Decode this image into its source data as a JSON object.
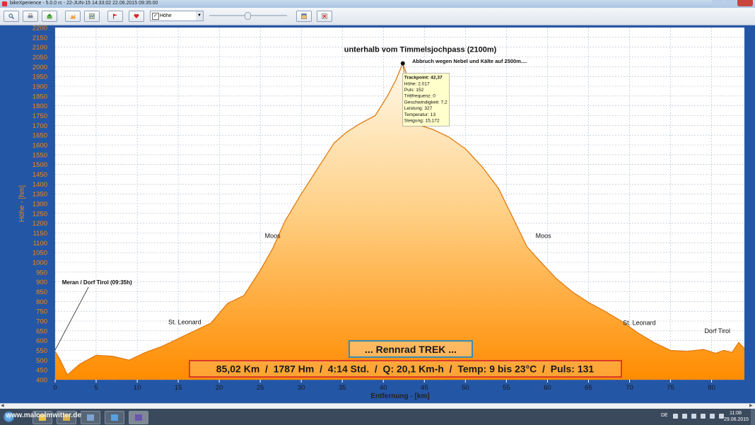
{
  "window": {
    "title": "bikeXperience - 5.0.0 rc - 22-JUN-15 14:33:02 22.06.2015 09:35:00"
  },
  "toolbar": {
    "buttons": [
      {
        "name": "zoom-button",
        "icon": "magnifier-icon"
      },
      {
        "name": "print-button",
        "icon": "printer-icon"
      },
      {
        "name": "export-button",
        "icon": "export-icon"
      },
      {
        "name": "profile-button",
        "icon": "profile-chart-icon"
      },
      {
        "name": "map-button",
        "icon": "map-icon"
      },
      {
        "name": "marker-button",
        "icon": "flag-icon"
      },
      {
        "name": "heart-button",
        "icon": "heart-icon"
      }
    ],
    "metric_select": {
      "label": "Höhe",
      "checked": true
    },
    "right_buttons": [
      {
        "name": "layout-button",
        "icon": "chart-window-icon"
      },
      {
        "name": "exit-button",
        "icon": "close-app-icon"
      }
    ]
  },
  "chart_data": {
    "type": "area",
    "title": "",
    "xlabel": "Entfernung - [km]",
    "ylabel": "Höhe - [hm]",
    "xlim": [
      0,
      84
    ],
    "ylim": [
      400,
      2200
    ],
    "x_ticks": [
      0,
      5,
      10,
      15,
      20,
      25,
      30,
      35,
      40,
      45,
      50,
      55,
      60,
      65,
      70,
      75,
      80
    ],
    "y_ticks": [
      400,
      450,
      500,
      550,
      600,
      650,
      700,
      750,
      800,
      850,
      900,
      950,
      1000,
      1050,
      1100,
      1150,
      1200,
      1250,
      1300,
      1350,
      1400,
      1450,
      1500,
      1550,
      1600,
      1650,
      1700,
      1750,
      1800,
      1850,
      1900,
      1950,
      2000,
      2050,
      2100,
      2150,
      2200
    ],
    "grid": true,
    "series": [
      {
        "x": [
          0,
          0.5,
          1.5,
          3,
          5,
          7,
          9,
          11,
          13,
          15,
          17,
          19,
          21,
          23,
          25,
          26.5,
          28,
          30,
          32,
          34,
          35.5,
          37,
          39,
          40.5,
          41.5,
          42.37,
          43.5,
          44.5,
          46,
          48,
          50,
          52,
          54,
          56,
          57.5,
          59,
          61,
          63,
          65,
          67,
          69,
          71,
          73,
          75,
          77,
          79,
          80.5,
          81.5,
          82.5,
          83.3,
          84
        ],
        "y": [
          545,
          510,
          425,
          480,
          525,
          520,
          500,
          540,
          570,
          610,
          650,
          690,
          790,
          830,
          960,
          1070,
          1210,
          1350,
          1480,
          1610,
          1665,
          1705,
          1750,
          1850,
          1930,
          2017,
          1880,
          1700,
          1680,
          1640,
          1580,
          1490,
          1380,
          1210,
          1080,
          1010,
          920,
          850,
          795,
          750,
          700,
          640,
          590,
          550,
          545,
          555,
          535,
          550,
          540,
          590,
          560
        ]
      }
    ],
    "annotations": [
      {
        "x": 44.5,
        "y": 2075,
        "text": "unterhalb vom Timmelsjochpass (2100m)"
      },
      {
        "x": 50.5,
        "y": 2020,
        "text": "Abbruch wegen Nebel und Kälte auf 2500m...."
      },
      {
        "x": 26.5,
        "y": 1125,
        "text": "Moos"
      },
      {
        "x": 59.5,
        "y": 1125,
        "text": "Moos"
      },
      {
        "x": 15.8,
        "y": 683,
        "text": "St. Leonard"
      },
      {
        "x": 71.2,
        "y": 680,
        "text": "St. Leonard"
      },
      {
        "x": 80.7,
        "y": 638,
        "text": "Dorf Tirol"
      },
      {
        "x": 5.1,
        "y": 888,
        "text": "Meran / Dorf Tirol (09:35h)"
      }
    ],
    "tooltip": {
      "x": 42.37,
      "y": 2017,
      "lines": [
        "Trackpoint: 42,37",
        "Höhe: 2.017",
        "Puls: 152",
        "Trittfrequenz: 0",
        "Geschwindigkeit: 7,2",
        "Leistung: 327",
        "Temperatur: 13",
        "Steigung: 15,172"
      ]
    },
    "info_boxes": {
      "bike": "... Rennrad TREK ...",
      "summary": "85,02 Km  /  1787 Hm  /  4:14 Std.  /  Q: 20,1 Km-h  /  Temp: 9 bis 23°C  /  Puls: 131"
    },
    "colors": {
      "fill_top": "#fff8ea",
      "fill_bottom": "#ff8c00",
      "line": "#e07a10",
      "grid": "#aab8cc",
      "axis_text": "#f08a10",
      "plot_bg": "#ffffff",
      "summary_border": "#d93a2a",
      "bike_border": "#3a8ab4"
    }
  },
  "taskbar": {
    "watermark": "www.malcolmwitter.de",
    "language": "DE",
    "time": "11:08",
    "date": "29.06.2015"
  }
}
